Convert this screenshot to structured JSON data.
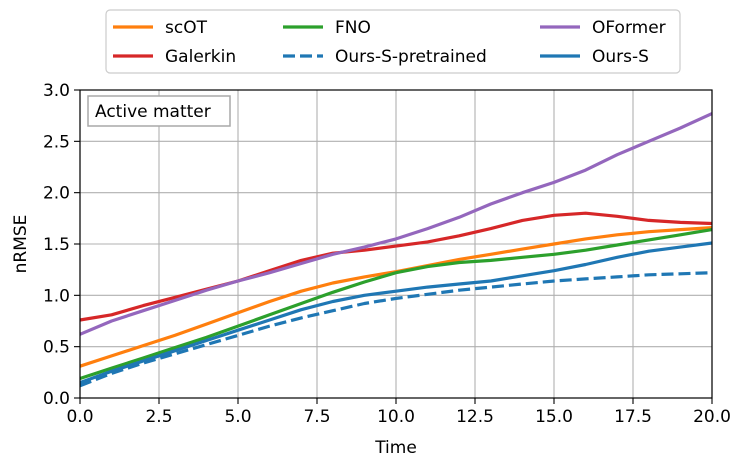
{
  "chart_data": {
    "type": "line",
    "annotation": "Active matter",
    "xlabel": "Time",
    "ylabel": "nRMSE",
    "xlim": [
      0,
      20
    ],
    "ylim": [
      0,
      3
    ],
    "xticks": [
      0,
      2.5,
      5,
      7.5,
      10,
      12.5,
      15,
      17.5,
      20
    ],
    "xtick_labels": [
      "0.0",
      "2.5",
      "5.0",
      "7.5",
      "10.0",
      "12.5",
      "15.0",
      "17.5",
      "20.0"
    ],
    "yticks": [
      0,
      0.5,
      1,
      1.5,
      2,
      2.5,
      3
    ],
    "ytick_labels": [
      "0.0",
      "0.5",
      "1.0",
      "1.5",
      "2.0",
      "2.5",
      "3.0"
    ],
    "grid": true,
    "legend_position": "top-center, outside plot",
    "x": [
      0,
      1,
      2,
      3,
      4,
      5,
      6,
      7,
      8,
      9,
      10,
      11,
      12,
      13,
      14,
      15,
      16,
      17,
      18,
      19,
      20
    ],
    "series": [
      {
        "name": "scOT",
        "color": "#ff7f0e",
        "dash": "solid",
        "values": [
          0.31,
          0.41,
          0.51,
          0.61,
          0.72,
          0.83,
          0.94,
          1.04,
          1.12,
          1.18,
          1.23,
          1.29,
          1.35,
          1.4,
          1.45,
          1.5,
          1.55,
          1.59,
          1.62,
          1.64,
          1.66
        ]
      },
      {
        "name": "Galerkin",
        "color": "#d62728",
        "dash": "solid",
        "values": [
          0.76,
          0.81,
          0.9,
          0.98,
          1.06,
          1.14,
          1.24,
          1.34,
          1.41,
          1.44,
          1.48,
          1.52,
          1.58,
          1.65,
          1.73,
          1.78,
          1.8,
          1.77,
          1.73,
          1.71,
          1.7
        ]
      },
      {
        "name": "FNO",
        "color": "#2ca02c",
        "dash": "solid",
        "values": [
          0.19,
          0.29,
          0.39,
          0.49,
          0.59,
          0.7,
          0.81,
          0.92,
          1.03,
          1.13,
          1.22,
          1.28,
          1.32,
          1.34,
          1.37,
          1.4,
          1.44,
          1.49,
          1.54,
          1.59,
          1.64
        ]
      },
      {
        "name": "Ours-S-pretrained",
        "color": "#1f77b4",
        "dash": "dashed",
        "values": [
          0.12,
          0.24,
          0.34,
          0.43,
          0.52,
          0.61,
          0.7,
          0.78,
          0.85,
          0.92,
          0.97,
          1.01,
          1.05,
          1.08,
          1.11,
          1.14,
          1.16,
          1.18,
          1.2,
          1.21,
          1.22
        ]
      },
      {
        "name": "OFormer",
        "color": "#9467bd",
        "dash": "solid",
        "values": [
          0.62,
          0.75,
          0.85,
          0.95,
          1.05,
          1.14,
          1.22,
          1.31,
          1.4,
          1.47,
          1.55,
          1.65,
          1.76,
          1.89,
          2.0,
          2.1,
          2.22,
          2.37,
          2.5,
          2.63,
          2.77
        ]
      },
      {
        "name": "Ours-S",
        "color": "#1f77b4",
        "dash": "solid",
        "values": [
          0.15,
          0.26,
          0.36,
          0.46,
          0.56,
          0.66,
          0.76,
          0.86,
          0.94,
          1.0,
          1.04,
          1.08,
          1.11,
          1.14,
          1.19,
          1.24,
          1.3,
          1.37,
          1.43,
          1.47,
          1.51
        ]
      }
    ]
  }
}
